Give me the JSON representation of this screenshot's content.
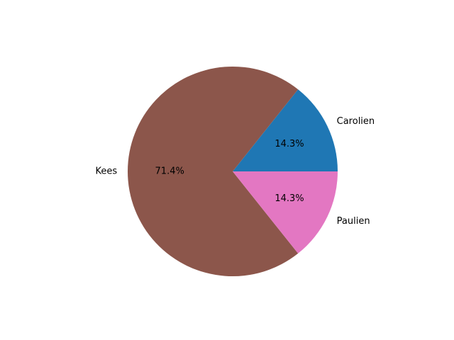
{
  "chart_data": {
    "type": "pie",
    "title": "",
    "slices": [
      {
        "label": "Carolien",
        "value": 14.3,
        "pct_text": "14.3%",
        "color": "#1f77b4"
      },
      {
        "label": "Kees",
        "value": 71.4,
        "pct_text": "71.4%",
        "color": "#8c564b"
      },
      {
        "label": "Paulien",
        "value": 14.3,
        "pct_text": "14.3%",
        "color": "#e377c2"
      }
    ],
    "start_angle_deg": 0,
    "direction": "counterclockwise",
    "legend": "none"
  }
}
